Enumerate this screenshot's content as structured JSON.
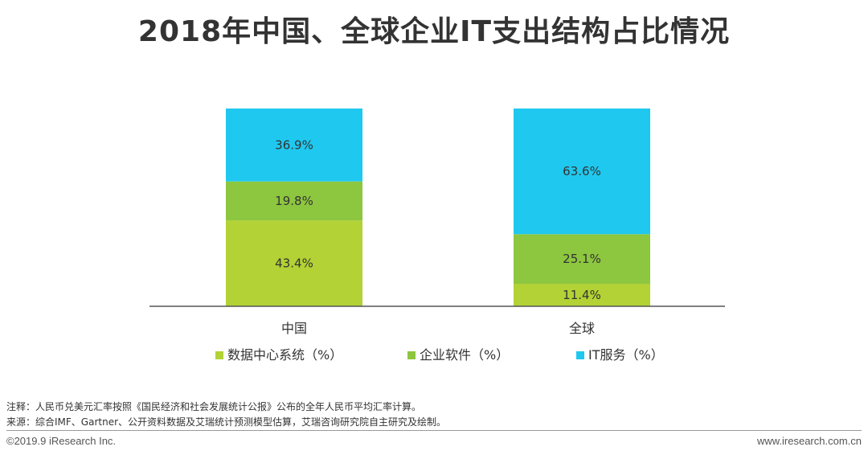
{
  "title": "2018年中国、全球企业IT支出结构占比情况",
  "chart_data": {
    "type": "bar",
    "stacked": true,
    "normalized_percent": true,
    "categories": [
      "中国",
      "全球"
    ],
    "series": [
      {
        "name": "数据中心系统（%）",
        "values": [
          43.4,
          11.4
        ],
        "labels": [
          "43.4%",
          "11.4%"
        ],
        "color": "#b2d235"
      },
      {
        "name": "企业软件（%）",
        "values": [
          19.8,
          25.1
        ],
        "labels": [
          "19.8%",
          "25.1%"
        ],
        "color": "#8dc63f"
      },
      {
        "name": "IT服务（%）",
        "values": [
          36.9,
          63.6
        ],
        "labels": [
          "36.9%",
          "63.6%"
        ],
        "color": "#1fc8ef"
      }
    ],
    "ylim": [
      0,
      100
    ],
    "grid": false,
    "legend_position": "bottom"
  },
  "notes": {
    "note": "注释：人民币兑美元汇率按照《国民经济和社会发展统计公报》公布的全年人民币平均汇率计算。",
    "source": "来源：综合IMF、Gartner、公开资料数据及艾瑞统计预测模型估算，艾瑞咨询研究院自主研究及绘制。"
  },
  "footer": {
    "copyright": "©2019.9 iResearch Inc.",
    "website": "www.iresearch.com.cn"
  }
}
